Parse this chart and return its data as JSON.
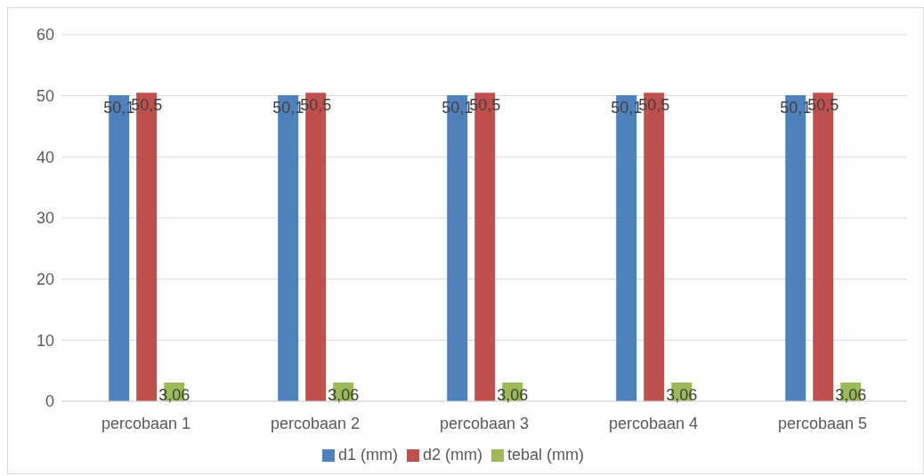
{
  "chart_data": {
    "type": "bar",
    "categories": [
      "percobaan 1",
      "percobaan 2",
      "percobaan 3",
      "percobaan 4",
      "percobaan 5"
    ],
    "series": [
      {
        "name": "d1 (mm)",
        "color": "#4f81bd",
        "values": [
          50.1,
          50.1,
          50.1,
          50.1,
          50.1
        ],
        "value_labels": [
          "50,1",
          "50,1",
          "50,1",
          "50,1",
          "50,1"
        ]
      },
      {
        "name": "d2 (mm)",
        "color": "#c0504d",
        "values": [
          50.5,
          50.5,
          50.5,
          50.5,
          50.5
        ],
        "value_labels": [
          "50,5",
          "50,5",
          "50,5",
          "50,5",
          "50,5"
        ]
      },
      {
        "name": "tebal (mm)",
        "color": "#9bbb59",
        "values": [
          3.06,
          3.06,
          3.06,
          3.06,
          3.06
        ],
        "value_labels": [
          "3,06",
          "3,06",
          "3,06",
          "3,06",
          "3,06"
        ]
      }
    ],
    "ylim": [
      0,
      60
    ],
    "yticks": [
      0,
      10,
      20,
      30,
      40,
      50,
      60
    ],
    "grid": "y",
    "legend": "bottom"
  }
}
